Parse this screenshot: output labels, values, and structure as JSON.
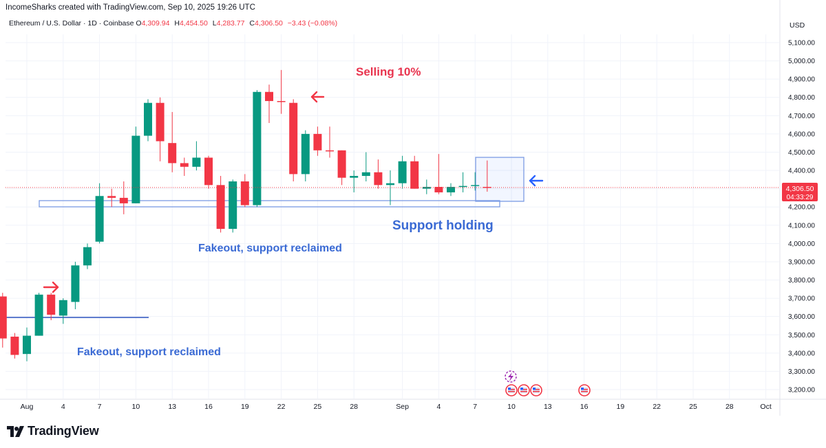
{
  "header": {
    "credit": "IncomeSharks created with TradingView.com, Sep 10, 2025 19:26 UTC"
  },
  "legend": {
    "symbol": "Ethereum / U.S. Dollar · 1D · Coinbase",
    "open_label": "O",
    "open": "4,309.94",
    "high_label": "H",
    "high": "4,454.50",
    "low_label": "L",
    "low": "4,283.77",
    "close_label": "C",
    "close": "4,306.50",
    "change": "−3.43 (−0.08%)"
  },
  "price_scale": {
    "currency": "USD",
    "current_price": "4,306.50",
    "countdown": "04:33:29"
  },
  "brand": {
    "name": "TradingView"
  },
  "annotations": {
    "selling": "Selling 10%",
    "support_holding": "Support holding",
    "fakeout_top": "Fakeout, support reclaimed",
    "fakeout_bottom": "Fakeout, support reclaimed"
  },
  "colors": {
    "up": "#089981",
    "down": "#f23645",
    "annotation_blue": "#2962ff",
    "annotation_red": "#f23645"
  },
  "icons": [
    "arrow-right-icon",
    "arrow-left-icon",
    "us-flag-icon",
    "lightning-icon",
    "tradingview-logo-icon"
  ],
  "chart_data": {
    "type": "candlestick",
    "y_ticks": [
      3200,
      3300,
      3400,
      3500,
      3600,
      3700,
      3800,
      3900,
      4000,
      4100,
      4200,
      4300,
      4400,
      4500,
      4600,
      4700,
      4800,
      4900,
      5000,
      5100
    ],
    "y_tick_labels": [
      "3,200.00",
      "3,300.00",
      "3,400.00",
      "3,500.00",
      "3,600.00",
      "3,700.00",
      "3,800.00",
      "3,900.00",
      "4,000.00",
      "4,100.00",
      "4,200.00",
      "4,300.00",
      "4,400.00",
      "4,500.00",
      "4,600.00",
      "4,700.00",
      "4,800.00",
      "4,900.00",
      "5,000.00",
      "5,100.00"
    ],
    "x_ticks": [
      {
        "label": "Aug",
        "date": "2025-08-01"
      },
      {
        "label": "4",
        "date": "2025-08-04"
      },
      {
        "label": "7",
        "date": "2025-08-07"
      },
      {
        "label": "10",
        "date": "2025-08-10"
      },
      {
        "label": "13",
        "date": "2025-08-13"
      },
      {
        "label": "16",
        "date": "2025-08-16"
      },
      {
        "label": "19",
        "date": "2025-08-19"
      },
      {
        "label": "22",
        "date": "2025-08-22"
      },
      {
        "label": "25",
        "date": "2025-08-25"
      },
      {
        "label": "28",
        "date": "2025-08-28"
      },
      {
        "label": "Sep",
        "date": "2025-09-01"
      },
      {
        "label": "4",
        "date": "2025-09-04"
      },
      {
        "label": "7",
        "date": "2025-09-07"
      },
      {
        "label": "10",
        "date": "2025-09-10"
      },
      {
        "label": "13",
        "date": "2025-09-13"
      },
      {
        "label": "16",
        "date": "2025-09-16"
      },
      {
        "label": "19",
        "date": "2025-09-19"
      },
      {
        "label": "22",
        "date": "2025-09-22"
      },
      {
        "label": "25",
        "date": "2025-09-25"
      },
      {
        "label": "28",
        "date": "2025-09-28"
      },
      {
        "label": "Oct",
        "date": "2025-10-01"
      }
    ],
    "candles": [
      {
        "date": "2025-07-29",
        "open": 3790,
        "high": 3880,
        "low": 3690,
        "close": 3690
      },
      {
        "date": "2025-07-30",
        "open": 3710,
        "high": 3730,
        "low": 3430,
        "close": 3480
      },
      {
        "date": "2025-07-31",
        "open": 3490,
        "high": 3510,
        "low": 3370,
        "close": 3390
      },
      {
        "date": "2025-08-01",
        "open": 3395,
        "high": 3540,
        "low": 3355,
        "close": 3495
      },
      {
        "date": "2025-08-02",
        "open": 3495,
        "high": 3730,
        "low": 3495,
        "close": 3720
      },
      {
        "date": "2025-08-03",
        "open": 3720,
        "high": 3730,
        "low": 3580,
        "close": 3610
      },
      {
        "date": "2025-08-04",
        "open": 3605,
        "high": 3700,
        "low": 3560,
        "close": 3690
      },
      {
        "date": "2025-08-05",
        "open": 3680,
        "high": 3900,
        "low": 3640,
        "close": 3880
      },
      {
        "date": "2025-08-06",
        "open": 3880,
        "high": 4000,
        "low": 3860,
        "close": 3980
      },
      {
        "date": "2025-08-07",
        "open": 4010,
        "high": 4330,
        "low": 4000,
        "close": 4260
      },
      {
        "date": "2025-08-08",
        "open": 4260,
        "high": 4300,
        "low": 4200,
        "close": 4250
      },
      {
        "date": "2025-08-09",
        "open": 4250,
        "high": 4340,
        "low": 4160,
        "close": 4220
      },
      {
        "date": "2025-08-10",
        "open": 4220,
        "high": 4640,
        "low": 4220,
        "close": 4590
      },
      {
        "date": "2025-08-11",
        "open": 4590,
        "high": 4790,
        "low": 4560,
        "close": 4770
      },
      {
        "date": "2025-08-12",
        "open": 4770,
        "high": 4800,
        "low": 4450,
        "close": 4560
      },
      {
        "date": "2025-08-13",
        "open": 4550,
        "high": 4720,
        "low": 4390,
        "close": 4440
      },
      {
        "date": "2025-08-14",
        "open": 4440,
        "high": 4470,
        "low": 4370,
        "close": 4420
      },
      {
        "date": "2025-08-15",
        "open": 4420,
        "high": 4560,
        "low": 4400,
        "close": 4470
      },
      {
        "date": "2025-08-16",
        "open": 4470,
        "high": 4480,
        "low": 4300,
        "close": 4320
      },
      {
        "date": "2025-08-17",
        "open": 4320,
        "high": 4370,
        "low": 4060,
        "close": 4080
      },
      {
        "date": "2025-08-18",
        "open": 4080,
        "high": 4350,
        "low": 4060,
        "close": 4340
      },
      {
        "date": "2025-08-19",
        "open": 4340,
        "high": 4380,
        "low": 4200,
        "close": 4210
      },
      {
        "date": "2025-08-20",
        "open": 4210,
        "high": 4840,
        "low": 4200,
        "close": 4830
      },
      {
        "date": "2025-08-21",
        "open": 4830,
        "high": 4870,
        "low": 4660,
        "close": 4780
      },
      {
        "date": "2025-08-22",
        "open": 4780,
        "high": 4950,
        "low": 4710,
        "close": 4775
      },
      {
        "date": "2025-08-23",
        "open": 4770,
        "high": 4790,
        "low": 4340,
        "close": 4380
      },
      {
        "date": "2025-08-24",
        "open": 4380,
        "high": 4620,
        "low": 4340,
        "close": 4600
      },
      {
        "date": "2025-08-25",
        "open": 4600,
        "high": 4640,
        "low": 4480,
        "close": 4510
      },
      {
        "date": "2025-08-26",
        "open": 4510,
        "high": 4640,
        "low": 4470,
        "close": 4505
      },
      {
        "date": "2025-08-27",
        "open": 4510,
        "high": 4510,
        "low": 4320,
        "close": 4360
      },
      {
        "date": "2025-08-28",
        "open": 4360,
        "high": 4400,
        "low": 4280,
        "close": 4370
      },
      {
        "date": "2025-08-29",
        "open": 4370,
        "high": 4500,
        "low": 4340,
        "close": 4390
      },
      {
        "date": "2025-08-30",
        "open": 4390,
        "high": 4460,
        "low": 4300,
        "close": 4320
      },
      {
        "date": "2025-08-31",
        "open": 4320,
        "high": 4400,
        "low": 4210,
        "close": 4330
      },
      {
        "date": "2025-09-01",
        "open": 4330,
        "high": 4480,
        "low": 4300,
        "close": 4450
      },
      {
        "date": "2025-09-02",
        "open": 4450,
        "high": 4480,
        "low": 4300,
        "close": 4300
      },
      {
        "date": "2025-09-03",
        "open": 4300,
        "high": 4350,
        "low": 4270,
        "close": 4310
      },
      {
        "date": "2025-09-04",
        "open": 4310,
        "high": 4490,
        "low": 4270,
        "close": 4280
      },
      {
        "date": "2025-09-05",
        "open": 4280,
        "high": 4330,
        "low": 4260,
        "close": 4310
      },
      {
        "date": "2025-09-06",
        "open": 4310,
        "high": 4390,
        "low": 4280,
        "close": 4315
      },
      {
        "date": "2025-09-07",
        "open": 4315,
        "high": 4390,
        "low": 4290,
        "close": 4320
      },
      {
        "date": "2025-09-08",
        "open": 4309.94,
        "high": 4454.5,
        "low": 4283.77,
        "close": 4306.5
      }
    ],
    "price_line": 4306.5,
    "grid": true
  }
}
